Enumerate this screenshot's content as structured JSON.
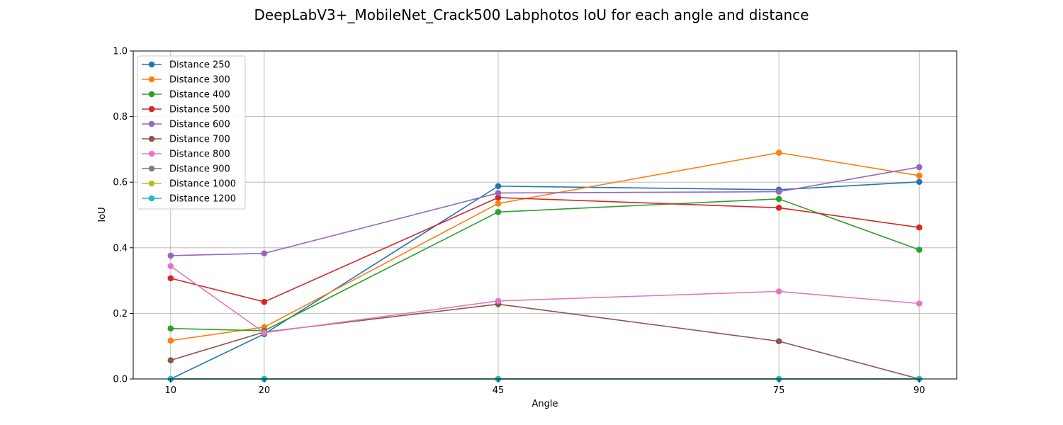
{
  "chart_data": {
    "type": "line",
    "title": "DeepLabV3+_MobileNet_Crack500 Labphotos IoU for each angle and distance",
    "xlabel": "Angle",
    "ylabel": "IoU",
    "x": [
      10,
      20,
      45,
      75,
      90
    ],
    "xlim": [
      6,
      94
    ],
    "ylim": [
      0.0,
      1.0
    ],
    "yticks": [
      0.0,
      0.2,
      0.4,
      0.6,
      0.8,
      1.0
    ],
    "ytick_labels": [
      "0.0",
      "0.2",
      "0.4",
      "0.6",
      "0.8",
      "1.0"
    ],
    "xtick_labels": [
      "10",
      "20",
      "45",
      "75",
      "90"
    ],
    "grid": true,
    "legend_position": "top-left",
    "series": [
      {
        "name": "Distance 250",
        "color": "#1f77b4",
        "values": [
          0.0,
          0.137,
          0.588,
          0.577,
          0.601
        ]
      },
      {
        "name": "Distance 300",
        "color": "#ff7f0e",
        "values": [
          0.117,
          0.158,
          0.535,
          0.69,
          0.62
        ]
      },
      {
        "name": "Distance 400",
        "color": "#2ca02c",
        "values": [
          0.154,
          0.147,
          0.509,
          0.549,
          0.394
        ]
      },
      {
        "name": "Distance 500",
        "color": "#d62728",
        "values": [
          0.307,
          0.235,
          0.553,
          0.522,
          0.462
        ]
      },
      {
        "name": "Distance 600",
        "color": "#9467bd",
        "values": [
          0.376,
          0.383,
          0.567,
          0.571,
          0.646
        ]
      },
      {
        "name": "Distance 700",
        "color": "#8c564b",
        "values": [
          0.057,
          0.143,
          0.228,
          0.115,
          0.0
        ]
      },
      {
        "name": "Distance 800",
        "color": "#e377c2",
        "values": [
          0.344,
          0.141,
          0.238,
          0.267,
          0.23
        ]
      },
      {
        "name": "Distance 900",
        "color": "#7f7f7f",
        "values": [
          0.0,
          0.0,
          0.0,
          0.0,
          0.0
        ]
      },
      {
        "name": "Distance 1000",
        "color": "#bcbd22",
        "values": [
          0.0,
          0.0,
          0.0,
          0.0,
          0.0
        ]
      },
      {
        "name": "Distance 1200",
        "color": "#17becf",
        "values": [
          0.0,
          0.0,
          0.0,
          0.0,
          0.0
        ]
      }
    ]
  }
}
